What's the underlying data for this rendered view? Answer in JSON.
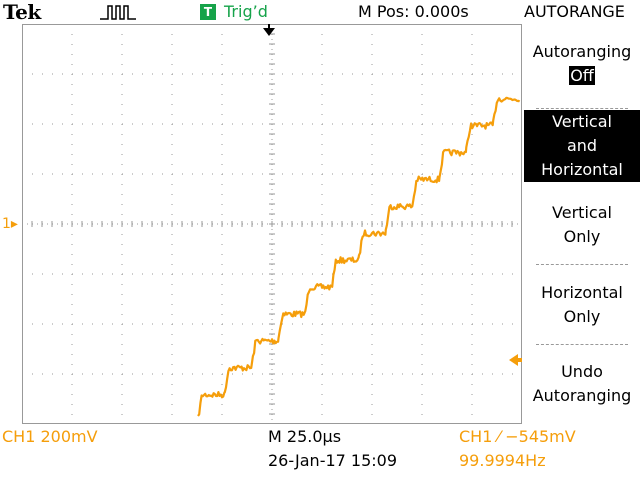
{
  "header": {
    "brand": "Tek",
    "trigger_badge": "T",
    "trigger_status": "Trig’d",
    "horizontal_position": "M Pos: 0.000s",
    "menu_title": "AUTORANGE",
    "acquisition_icon": "pulse-waveform-icon"
  },
  "markers": {
    "ch1_marker": "1",
    "trigger_position_icon": "down-arrow-icon",
    "trigger_level_icon": "left-arrow-icon"
  },
  "side_menu": {
    "autoranging_label": "Autoranging",
    "autoranging_value": "Off",
    "vh_line1": "Vertical",
    "vh_line2": "and",
    "vh_line3": "Horizontal",
    "vo_line1": "Vertical",
    "vo_line2": "Only",
    "ho_line1": "Horizontal",
    "ho_line2": "Only",
    "undo_line1": "Undo",
    "undo_line2": "Autoranging"
  },
  "footer": {
    "ch1_scale": "CH1  200mV",
    "timebase": "M 25.0µs",
    "datetime": "26-Jan-17 15:09",
    "trigger_source": "CH1 ⁄ −545mV",
    "frequency": "99.9994Hz"
  },
  "colors": {
    "trace": "#f59e0b",
    "trigger_green": "#16a34a",
    "graticule": "#999999"
  },
  "waveform": {
    "channel": "CH1",
    "shape": "staircase-ramp",
    "steps": 12
  }
}
